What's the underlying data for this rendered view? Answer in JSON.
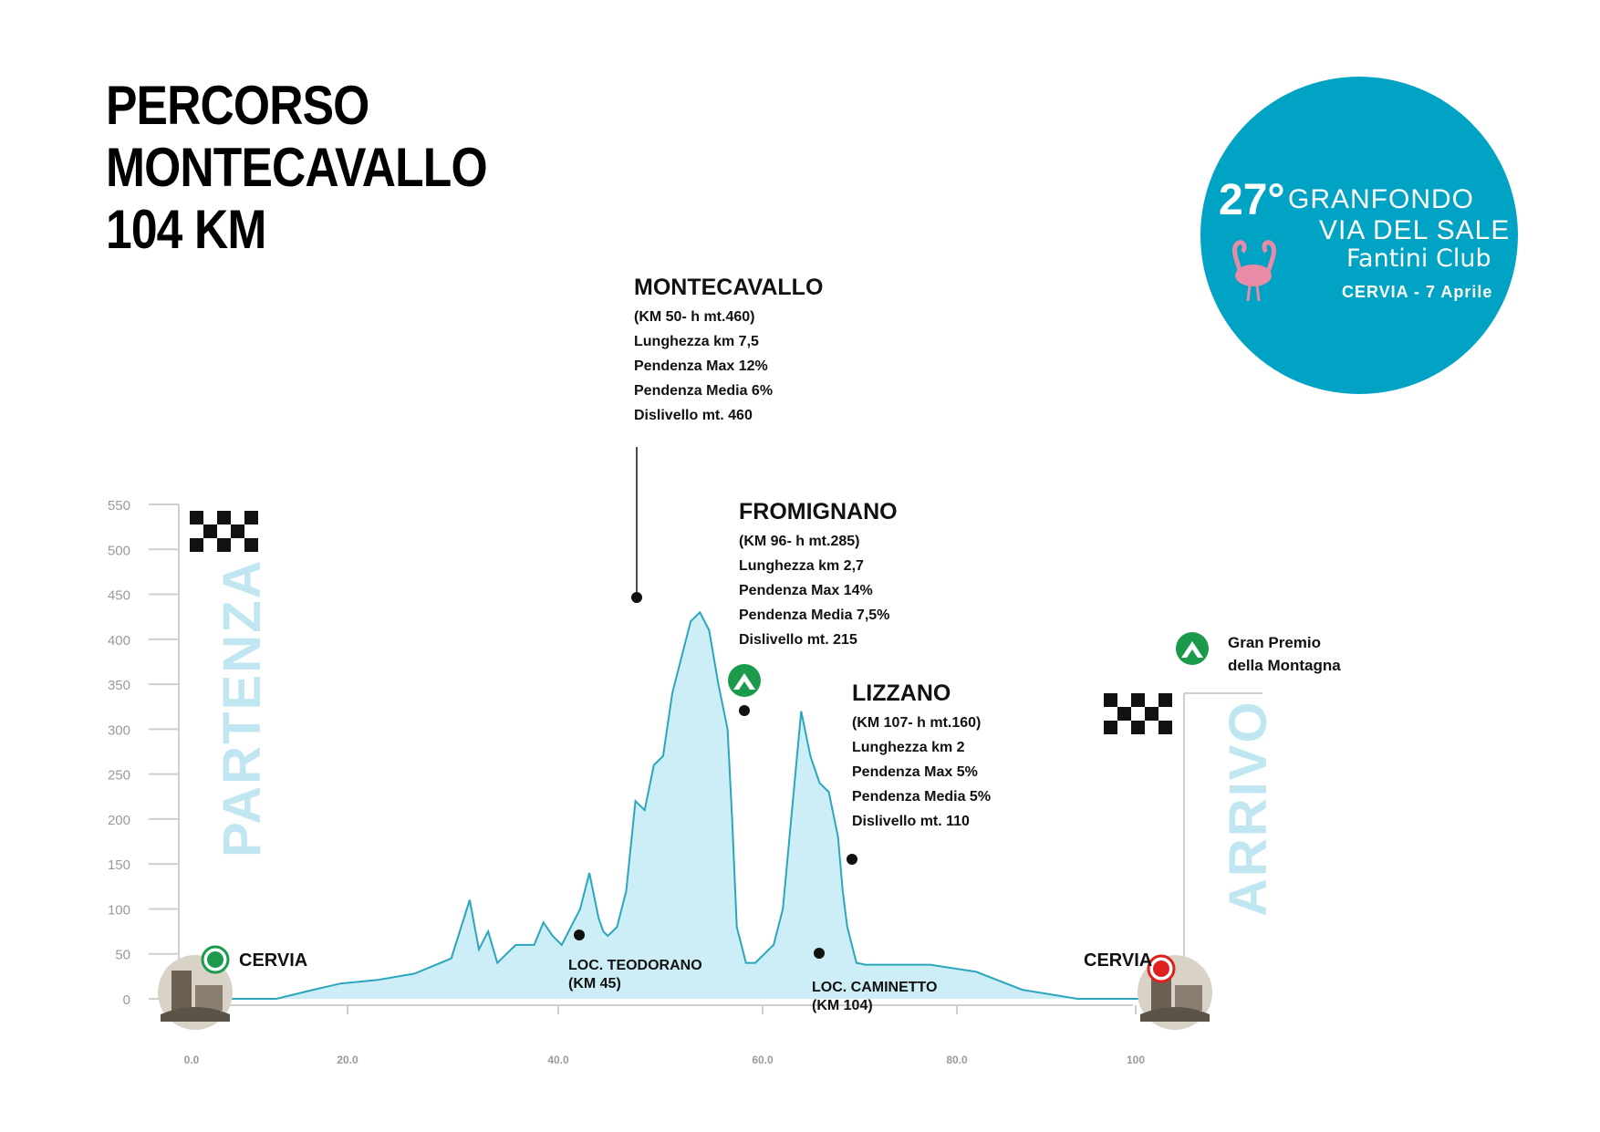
{
  "title_lines": [
    "PERCORSO",
    "MONTECAVALLO",
    "104 KM"
  ],
  "badge": {
    "edition": "27°",
    "line1": "GRANFONDO",
    "line2": "VIA DEL SALE",
    "line3": "Fantini Club",
    "line4": "CERVIA - 7 Aprile",
    "color": "#00a3c4"
  },
  "start_label": "PARTENZA",
  "finish_label": "ARRIVO",
  "legend": {
    "line1": "Gran Premio",
    "line2": "della Montagna",
    "icon": "kom-triangle-icon",
    "color": "#1a9a4a"
  },
  "chart_data": {
    "type": "area",
    "xlabel": "",
    "ylabel": "",
    "xlim": [
      0,
      104
    ],
    "ylim": [
      0,
      550
    ],
    "y_ticks": [
      "550",
      "500",
      "450",
      "400",
      "350",
      "300",
      "250",
      "200",
      "150",
      "100",
      "50",
      "0"
    ],
    "x_ticks": [
      "0.0",
      "20.0",
      "40.0",
      "60.0",
      "80.0",
      "100"
    ],
    "fill_color": "#cdeef6",
    "line_color": "#2aa6bd",
    "series": [
      {
        "x": [
          0,
          9,
          13,
          16,
          20,
          24,
          28,
          30,
          31,
          32,
          33,
          34,
          35,
          36,
          37,
          38,
          39,
          40,
          41,
          42,
          43,
          44,
          44.5,
          45,
          45.5,
          46,
          47,
          48,
          49,
          50,
          51,
          52,
          53,
          54,
          55,
          56,
          57,
          58,
          58.5,
          59,
          60,
          61,
          62,
          63,
          64,
          66,
          67,
          68,
          69,
          70,
          70.5,
          71,
          72,
          73,
          74,
          75,
          76,
          78,
          80,
          85,
          90,
          96,
          100,
          104
        ],
        "y": [
          0,
          0,
          10,
          17,
          21,
          28,
          45,
          110,
          55,
          75,
          40,
          50,
          60,
          60,
          60,
          85,
          70,
          60,
          80,
          100,
          140,
          90,
          75,
          70,
          75,
          80,
          120,
          220,
          210,
          260,
          270,
          340,
          380,
          420,
          430,
          410,
          350,
          300,
          200,
          80,
          40,
          40,
          50,
          60,
          100,
          320,
          270,
          240,
          230,
          180,
          120,
          80,
          40,
          38,
          38,
          38,
          38,
          38,
          38,
          30,
          10,
          0,
          0,
          0
        ]
      }
    ],
    "climbs": [
      {
        "name": "MONTECAVALLO",
        "lines": [
          "(KM 50- h mt.460)",
          "Lunghezza km 7,5",
          "Pendenza Max 12%",
          "Pendenza Media 6%",
          "Dislivello mt. 460"
        ]
      },
      {
        "name": "FROMIGNANO",
        "lines": [
          "(KM 96- h mt.285)",
          "Lunghezza km 2,7",
          "Pendenza Max 14%",
          "Pendenza Media 7,5%",
          "Dislivello mt. 215"
        ]
      },
      {
        "name": "LIZZANO",
        "lines": [
          "(KM 107- h mt.160)",
          "Lunghezza km 2",
          "Pendenza Max 5%",
          "Pendenza Media 5%",
          "Dislivello mt. 110"
        ]
      }
    ],
    "localities": [
      {
        "lines": [
          "LOC. TEODORANO",
          "(KM 45)"
        ]
      },
      {
        "lines": [
          "LOC. CAMINETTO",
          "(KM 104)"
        ]
      }
    ],
    "start_city": "CERVIA",
    "finish_city": "CERVIA",
    "start_color": "#1a9a4a",
    "finish_color": "#e02020"
  }
}
